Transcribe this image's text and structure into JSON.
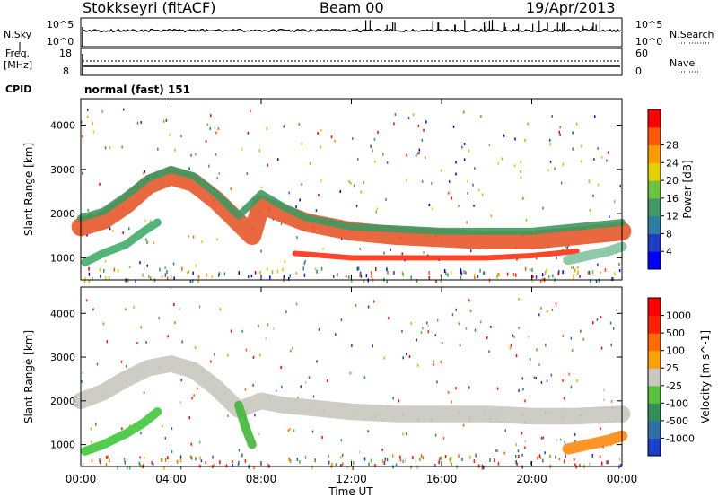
{
  "header": {
    "station": "Stokkseyri (fitACF)",
    "beam": "Beam 00",
    "date": "19/Apr/2013"
  },
  "strip_labels": {
    "nsky": "N.Sky",
    "nsky_ticks": [
      "10^5",
      "10^0"
    ],
    "nsearch": "N.Search",
    "nsearch_ticks": [
      "10^5",
      "10^0"
    ],
    "freq_line1": "Freq.",
    "freq_line2": "[MHz]",
    "freq_ticks": [
      "18",
      "8"
    ],
    "nave": "Nave",
    "nave_ticks": [
      "60",
      "0"
    ],
    "cpid": "CPID",
    "cpid_value": "normal (fast) 151"
  },
  "chart_data": [
    {
      "type": "heatmap",
      "name": "power",
      "ylabel": "Slant Range [km]",
      "yticks": [
        "1000",
        "2000",
        "3000",
        "4000"
      ],
      "ylim": [
        500,
        4600
      ],
      "xlabel": "Time UT",
      "xticks": [
        "00:00",
        "04:00",
        "08:00",
        "12:00",
        "16:00",
        "20:00",
        "00:00"
      ],
      "xlim": [
        0,
        24
      ],
      "colorbar": {
        "label": "Power [dB]",
        "ticks": [
          "4",
          "8",
          "12",
          "16",
          "20",
          "24",
          "28"
        ],
        "colors": [
          "#0000ff",
          "#1e3cc8",
          "#2b7ea0",
          "#3f9960",
          "#6cc23c",
          "#e0d000",
          "#ff9a00",
          "#ff5a00",
          "#ff0000"
        ]
      },
      "bands": [
        {
          "points": [
            [
              0,
              1700
            ],
            [
              1,
              1850
            ],
            [
              2,
              2200
            ],
            [
              3,
              2650
            ],
            [
              4,
              2850
            ],
            [
              5,
              2700
            ],
            [
              6,
              2300
            ],
            [
              7,
              1800
            ],
            [
              7.6,
              1500
            ],
            [
              8,
              2200
            ],
            [
              9,
              2000
            ],
            [
              10,
              1800
            ],
            [
              12,
              1600
            ],
            [
              14,
              1500
            ],
            [
              16,
              1450
            ],
            [
              18,
              1400
            ],
            [
              20,
              1400
            ],
            [
              22,
              1500
            ],
            [
              24,
              1600
            ]
          ],
          "width": 420,
          "color": "#e8582a"
        },
        {
          "points": [
            [
              0,
              1900
            ],
            [
              1,
              2050
            ],
            [
              2,
              2400
            ],
            [
              3,
              2800
            ],
            [
              4,
              3000
            ],
            [
              5,
              2850
            ],
            [
              6,
              2450
            ],
            [
              7,
              1950
            ],
            [
              8,
              2450
            ],
            [
              9,
              2150
            ],
            [
              10,
              1900
            ],
            [
              12,
              1700
            ],
            [
              14,
              1650
            ],
            [
              16,
              1600
            ],
            [
              18,
              1600
            ],
            [
              20,
              1600
            ],
            [
              22,
              1700
            ],
            [
              24,
              1800
            ]
          ],
          "width": 160,
          "color": "#3f9960"
        },
        {
          "points": [
            [
              0.2,
              900
            ],
            [
              1,
              1100
            ],
            [
              2,
              1300
            ],
            [
              2.8,
              1600
            ],
            [
              3.4,
              1800
            ]
          ],
          "width": 180,
          "color": "#3fae6a"
        },
        {
          "points": [
            [
              9.5,
              1100
            ],
            [
              12,
              1000
            ],
            [
              15,
              1000
            ],
            [
              18,
              1000
            ],
            [
              20,
              1050
            ],
            [
              22,
              1150
            ]
          ],
          "width": 120,
          "color": "#ff3010"
        },
        {
          "points": [
            [
              21.6,
              950
            ],
            [
              22.5,
              1050
            ],
            [
              23.4,
              1150
            ],
            [
              24,
              1250
            ]
          ],
          "width": 220,
          "color": "#7fc4a0"
        }
      ]
    },
    {
      "type": "heatmap",
      "name": "velocity",
      "ylabel": "Slant Range [km]",
      "yticks": [
        "1000",
        "2000",
        "3000",
        "4000"
      ],
      "ylim": [
        500,
        4600
      ],
      "xlabel": "Time UT",
      "xticks": [
        "00:00",
        "04:00",
        "08:00",
        "12:00",
        "16:00",
        "20:00",
        "00:00"
      ],
      "xlim": [
        0,
        24
      ],
      "colorbar": {
        "label": "Velocity [m s^-1]",
        "ticks": [
          "1000",
          "500",
          "100",
          "25",
          "-25",
          "-100",
          "-500",
          "-1000"
        ],
        "colors": [
          "#1a3fc8",
          "#2e6fa8",
          "#2f8f55",
          "#55c23a",
          "#c8c8c0",
          "#ffa000",
          "#ff6a00",
          "#ff2000",
          "#ff0000"
        ]
      },
      "bands": [
        {
          "points": [
            [
              0,
              2000
            ],
            [
              1,
              2200
            ],
            [
              2,
              2500
            ],
            [
              3,
              2750
            ],
            [
              4,
              2850
            ],
            [
              5,
              2700
            ],
            [
              6,
              2300
            ],
            [
              7,
              1800
            ],
            [
              8,
              2000
            ],
            [
              9,
              1900
            ],
            [
              10,
              1850
            ],
            [
              12,
              1750
            ],
            [
              14,
              1700
            ],
            [
              16,
              1700
            ],
            [
              18,
              1700
            ],
            [
              20,
              1650
            ],
            [
              22,
              1650
            ],
            [
              24,
              1700
            ]
          ],
          "width": 380,
          "color": "#c8c8c0"
        },
        {
          "points": [
            [
              0.2,
              850
            ],
            [
              1,
              1000
            ],
            [
              2,
              1250
            ],
            [
              2.8,
              1500
            ],
            [
              3.4,
              1750
            ]
          ],
          "width": 200,
          "color": "#3fc83a"
        },
        {
          "points": [
            [
              7,
              1900
            ],
            [
              7.3,
              1400
            ],
            [
              7.6,
              1000
            ]
          ],
          "width": 200,
          "color": "#3fb83a"
        },
        {
          "points": [
            [
              21.6,
              900
            ],
            [
              22.5,
              1000
            ],
            [
              23.4,
              1100
            ],
            [
              24,
              1200
            ]
          ],
          "width": 250,
          "color": "#ff8a10"
        }
      ]
    }
  ]
}
